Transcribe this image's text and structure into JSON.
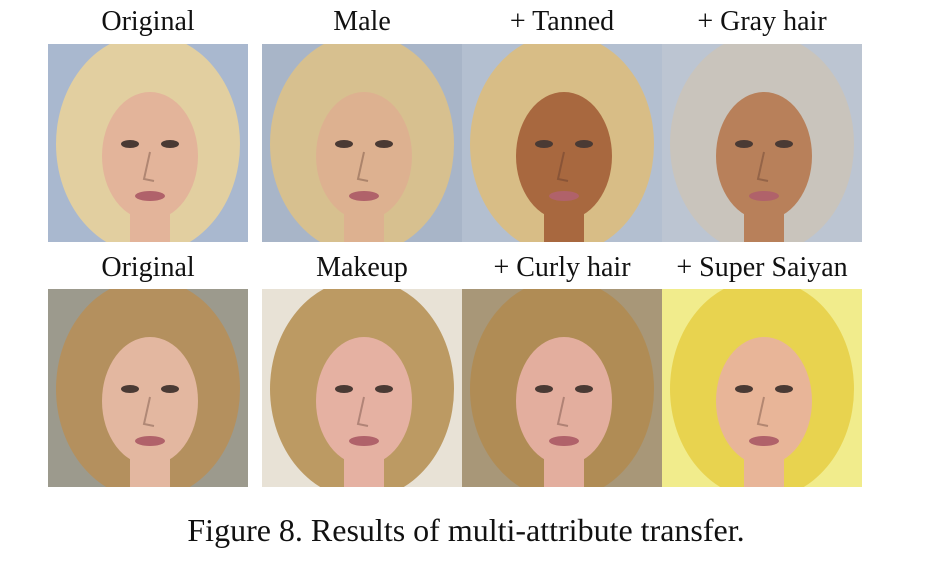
{
  "figure": {
    "caption": "Figure 8. Results of multi-attribute transfer.",
    "rows": [
      {
        "labels": [
          "Original",
          "Male",
          "+ Tanned",
          "+ Gray hair"
        ],
        "images": [
          {
            "subject": "blonde-woman-portrait",
            "hair": "#e2cfa0",
            "skin": "#e3b49a",
            "bg": "#a9b8cf"
          },
          {
            "subject": "male-transfer",
            "hair": "#d7c08f",
            "skin": "#ddb190",
            "bg": "#a8b5c8"
          },
          {
            "subject": "tanned-male",
            "hair": "#d8bd86",
            "skin": "#a8683f",
            "bg": "#b3bfd0"
          },
          {
            "subject": "gray-hair-male",
            "hair": "#c9c4bc",
            "skin": "#b8805a",
            "bg": "#bcc5d2"
          }
        ]
      },
      {
        "labels": [
          "Original",
          "Makeup",
          "+ Curly hair",
          "+ Super Saiyan"
        ],
        "images": [
          {
            "subject": "brown-hair-woman-portrait",
            "hair": "#b4905e",
            "skin": "#e3b7a0",
            "bg": "#9c9a8d"
          },
          {
            "subject": "makeup-transfer",
            "hair": "#bc9a63",
            "skin": "#e5b1a2",
            "bg": "#e8e2d6"
          },
          {
            "subject": "curly-hair-transfer",
            "hair": "#b08c55",
            "skin": "#e3ae9e",
            "bg": "#a89778"
          },
          {
            "subject": "super-saiyan-transfer",
            "hair": "#e8d34f",
            "skin": "#e8b598",
            "bg": "#f1ec8c"
          }
        ]
      }
    ]
  }
}
